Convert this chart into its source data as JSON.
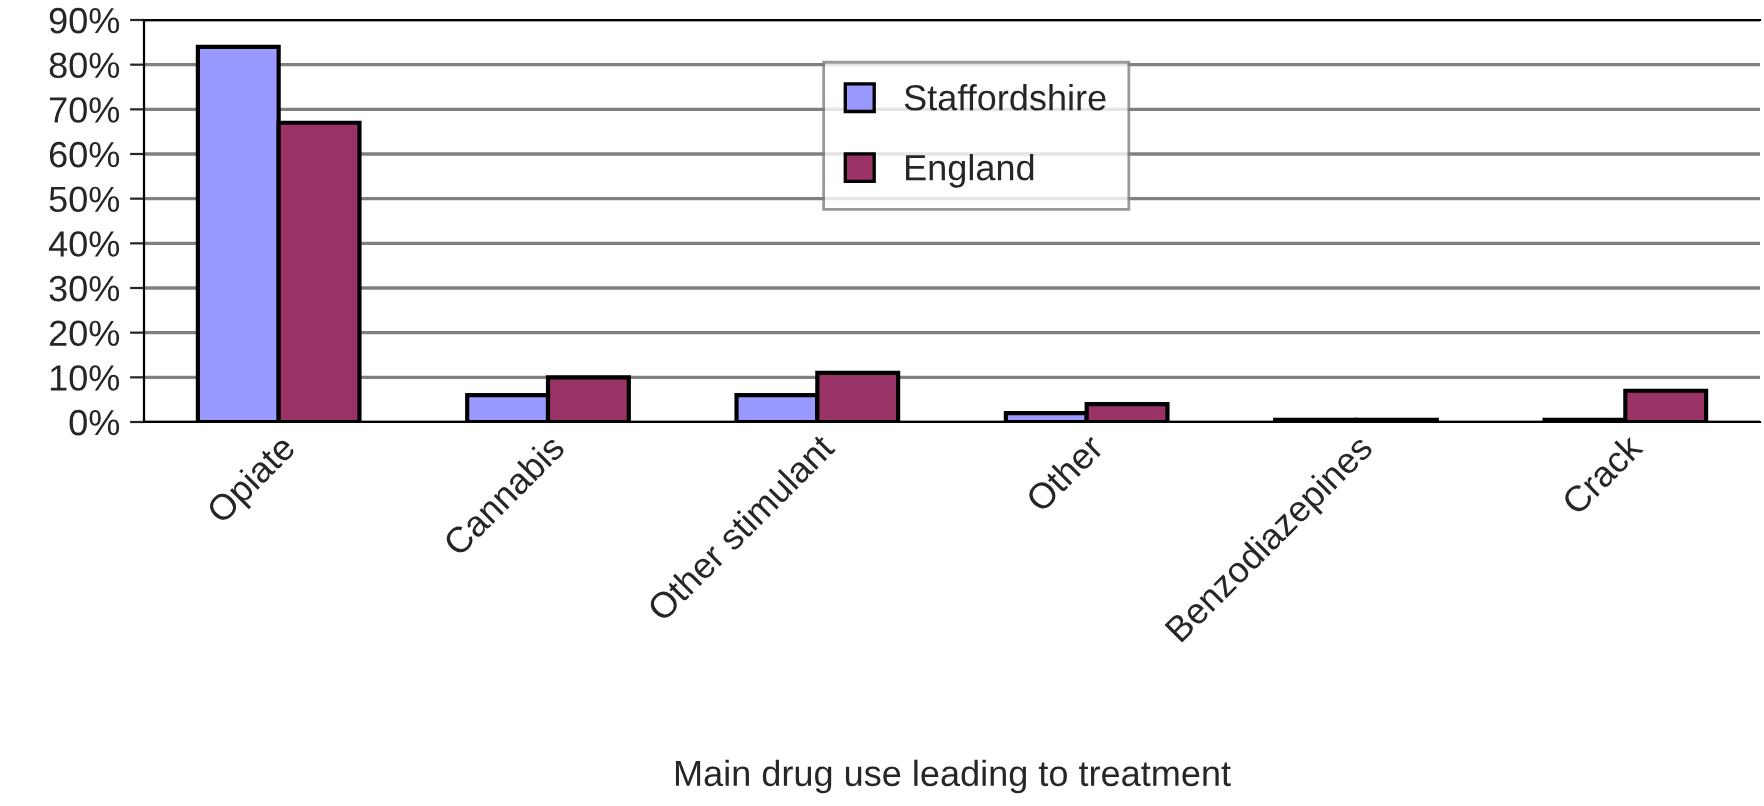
{
  "chart_data": {
    "type": "bar",
    "xlabel": "Main drug use leading to treatment",
    "categories": [
      "Opiate",
      "Cannabis",
      "Other stimulant",
      "Other",
      "Benzodiazepines",
      "Crack"
    ],
    "series": [
      {
        "name": "Staffordshire",
        "color": "#9999ff",
        "values": [
          84,
          6,
          6,
          2,
          0.5,
          0.5
        ]
      },
      {
        "name": "England",
        "color": "#993366",
        "values": [
          67,
          10,
          11,
          4,
          0.5,
          7
        ]
      }
    ],
    "ylim": [
      0,
      90
    ],
    "yticks": [
      {
        "value": 0,
        "label": "0%"
      },
      {
        "value": 10,
        "label": "10%"
      },
      {
        "value": 20,
        "label": "20%"
      },
      {
        "value": 30,
        "label": "30%"
      },
      {
        "value": 40,
        "label": "40%"
      },
      {
        "value": 50,
        "label": "50%"
      },
      {
        "value": 60,
        "label": "60%"
      },
      {
        "value": 70,
        "label": "70%"
      },
      {
        "value": 80,
        "label": "80%"
      },
      {
        "value": 90,
        "label": "90%"
      }
    ],
    "grid": "y",
    "legend": "top"
  }
}
